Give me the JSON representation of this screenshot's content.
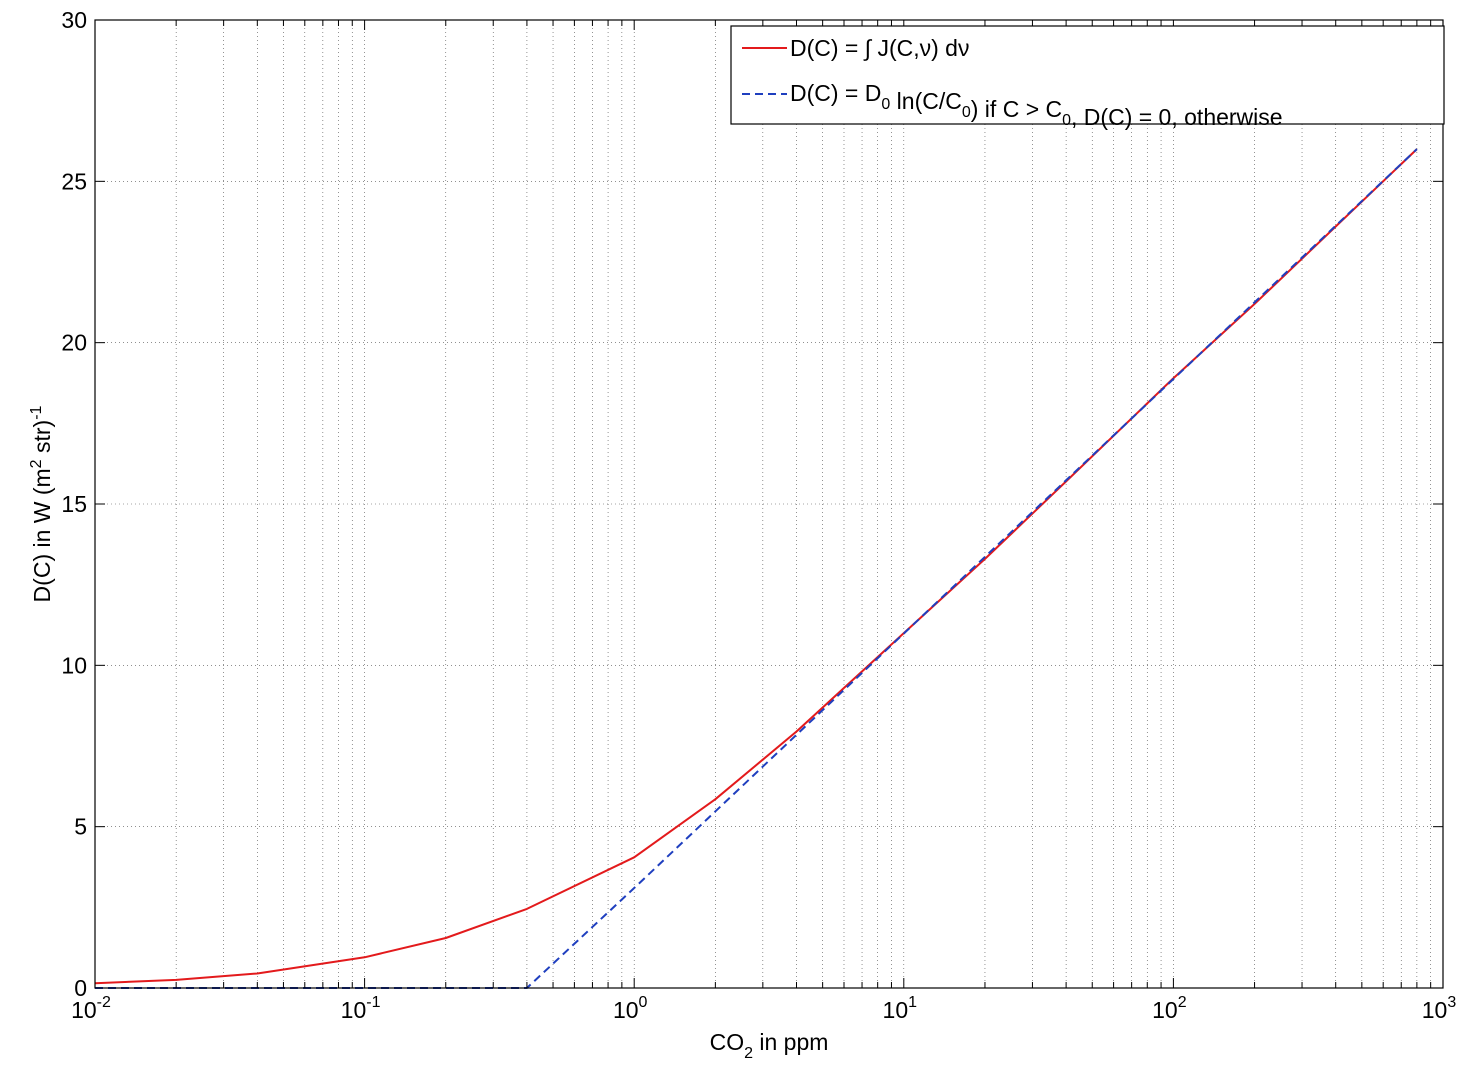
{
  "chart_data": {
    "type": "line",
    "xscale": "log",
    "xlim": [
      0.01,
      1000
    ],
    "ylim": [
      0,
      30
    ],
    "grid": true,
    "legend_position": "top-right",
    "xlabel": {
      "base": "CO",
      "sub": "2",
      "rest": " in ppm"
    },
    "ylabel": {
      "pre": "D(C) in  W (m",
      "sup1": "2",
      "mid": " str)",
      "sup2": "-1"
    },
    "x_ticks": [
      {
        "value": 0.01,
        "base": "10",
        "exp": "-2"
      },
      {
        "value": 0.1,
        "base": "10",
        "exp": "-1"
      },
      {
        "value": 1,
        "base": "10",
        "exp": "0"
      },
      {
        "value": 10,
        "base": "10",
        "exp": "1"
      },
      {
        "value": 100,
        "base": "10",
        "exp": "2"
      },
      {
        "value": 1000,
        "base": "10",
        "exp": "3"
      }
    ],
    "y_ticks": [
      {
        "value": 0,
        "label": "0"
      },
      {
        "value": 5,
        "label": "5"
      },
      {
        "value": 10,
        "label": "10"
      },
      {
        "value": 15,
        "label": "15"
      },
      {
        "value": 20,
        "label": "20"
      },
      {
        "value": 25,
        "label": "25"
      },
      {
        "value": 30,
        "label": "30"
      }
    ],
    "series": [
      {
        "color": "#e31a1c",
        "dash": "solid",
        "legend_text": "D(C) = ∫ J(C,ν) dν",
        "x": [
          0.01,
          0.02,
          0.04,
          0.1,
          0.2,
          0.4,
          1,
          2,
          4,
          10,
          20,
          40,
          100,
          200,
          400,
          800
        ],
        "y": [
          0.15,
          0.25,
          0.45,
          0.95,
          1.55,
          2.45,
          4.05,
          5.85,
          7.95,
          11.0,
          13.3,
          15.7,
          18.9,
          21.2,
          23.6,
          26.0
        ]
      },
      {
        "color": "#1f3fbf",
        "dash": "dashed",
        "legend_text": "D(C) = D_0 ln(C/C_0) if C > C_0, D(C) = 0, otherwise",
        "legend_parts": [
          {
            "t": "D(C) = D",
            "s": "normal"
          },
          {
            "t": "0",
            "s": "sub"
          },
          {
            "t": " ln(C/C",
            "s": "normal"
          },
          {
            "t": "0",
            "s": "sub"
          },
          {
            "t": ") if C > C",
            "s": "normal"
          },
          {
            "t": "0",
            "s": "sub"
          },
          {
            "t": ", D(C) = 0, otherwise",
            "s": "normal"
          }
        ],
        "x": [
          0.01,
          0.4,
          1,
          800
        ],
        "y": [
          0,
          0,
          3.1,
          26.0
        ]
      }
    ]
  }
}
